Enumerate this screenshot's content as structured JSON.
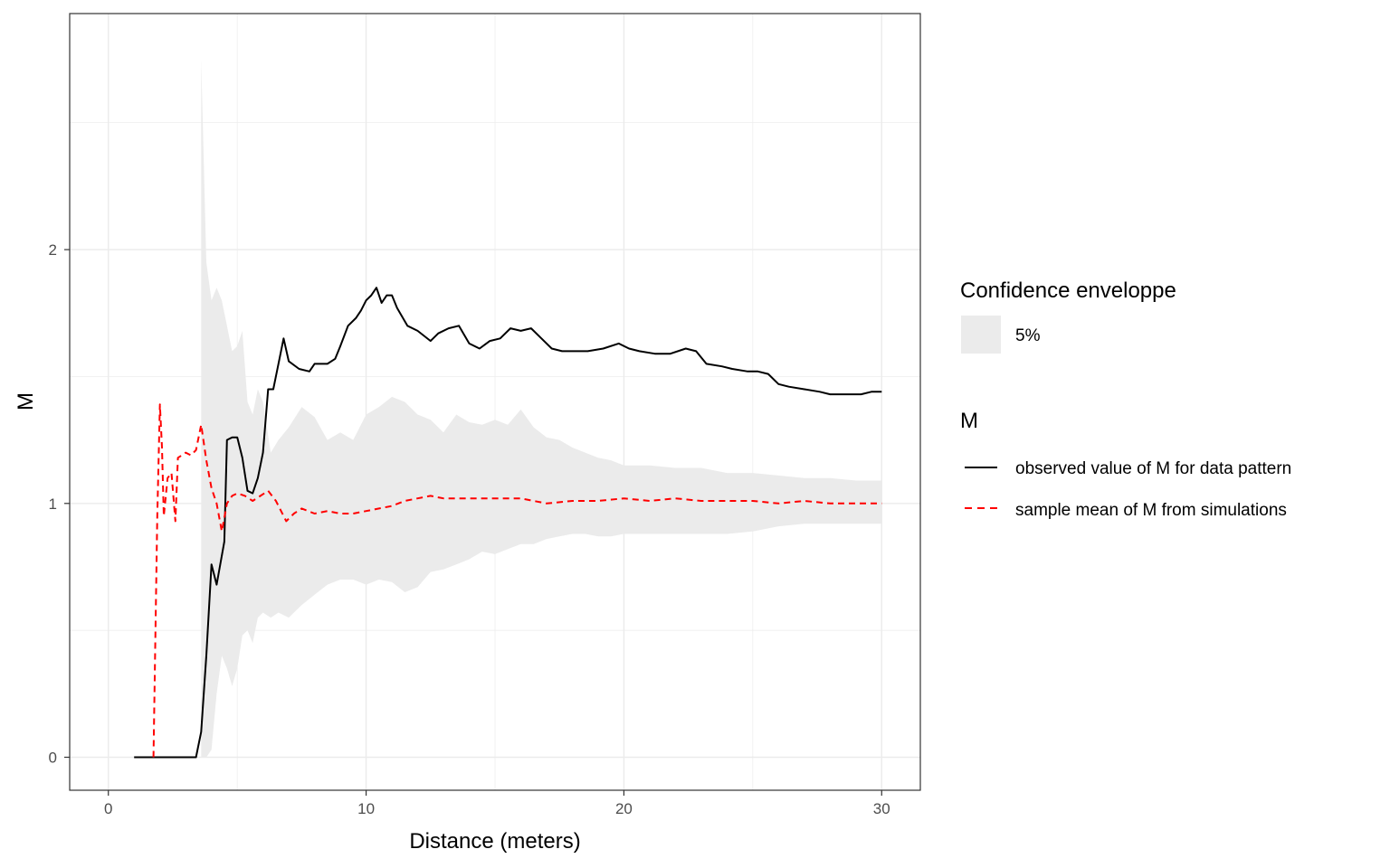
{
  "chart_data": {
    "type": "line",
    "title": "",
    "xlabel": "Distance (meters)",
    "ylabel": "M",
    "xlim": [
      -1.5,
      31.5
    ],
    "ylim": [
      -0.13,
      2.93
    ],
    "x_ticks": [
      0,
      10,
      20,
      30
    ],
    "y_ticks": [
      0,
      1,
      2
    ],
    "x_tick_labels": [
      "0",
      "10",
      "20",
      "30"
    ],
    "y_tick_labels": [
      "0",
      "1",
      "2"
    ],
    "grid": true,
    "legend_position": "right",
    "colors": {
      "observed": "#000000",
      "mean": "#ff0000",
      "envelope": "#ebebeb"
    },
    "legends": [
      {
        "title": "Confidence enveloppe",
        "entries": [
          {
            "label": "5%",
            "kind": "fill"
          }
        ]
      },
      {
        "title": "M",
        "entries": [
          {
            "label": "observed value of M for data pattern",
            "kind": "solid"
          },
          {
            "label": "sample mean of M from simulations",
            "kind": "dashed"
          }
        ]
      }
    ],
    "series": [
      {
        "name": "observed value of M for data pattern",
        "x": [
          1,
          2,
          3,
          3.4,
          3.6,
          3.8,
          4.0,
          4.2,
          4.5,
          4.6,
          4.8,
          5.0,
          5.2,
          5.4,
          5.6,
          5.8,
          6.0,
          6.2,
          6.4,
          6.6,
          6.8,
          7.0,
          7.4,
          7.8,
          8.0,
          8.5,
          8.8,
          9.0,
          9.3,
          9.6,
          9.8,
          10.0,
          10.2,
          10.4,
          10.6,
          10.8,
          11.0,
          11.2,
          11.6,
          12.0,
          12.5,
          12.8,
          13.2,
          13.6,
          14.0,
          14.4,
          14.8,
          15.2,
          15.6,
          16.0,
          16.4,
          16.8,
          17.2,
          17.6,
          18.0,
          18.6,
          19.2,
          19.8,
          20.2,
          20.6,
          21.2,
          21.8,
          22.4,
          22.8,
          23.2,
          23.8,
          24.2,
          24.8,
          25.2,
          25.6,
          26.0,
          26.4,
          27.0,
          27.6,
          28.0,
          28.6,
          29.2,
          29.6,
          30.0
        ],
        "values": [
          0,
          0,
          0,
          0,
          0.1,
          0.4,
          0.76,
          0.68,
          0.85,
          1.25,
          1.26,
          1.26,
          1.18,
          1.05,
          1.04,
          1.1,
          1.2,
          1.45,
          1.45,
          1.55,
          1.65,
          1.56,
          1.53,
          1.52,
          1.55,
          1.55,
          1.57,
          1.62,
          1.7,
          1.73,
          1.76,
          1.8,
          1.82,
          1.85,
          1.79,
          1.82,
          1.82,
          1.77,
          1.7,
          1.68,
          1.64,
          1.67,
          1.69,
          1.7,
          1.63,
          1.61,
          1.64,
          1.65,
          1.69,
          1.68,
          1.69,
          1.65,
          1.61,
          1.6,
          1.6,
          1.6,
          1.61,
          1.63,
          1.61,
          1.6,
          1.59,
          1.59,
          1.61,
          1.6,
          1.55,
          1.54,
          1.53,
          1.52,
          1.52,
          1.51,
          1.47,
          1.46,
          1.45,
          1.44,
          1.43,
          1.43,
          1.43,
          1.44,
          1.44
        ]
      },
      {
        "name": "sample mean of M from simulations",
        "x": [
          1.75,
          1.9,
          2.0,
          2.08,
          2.15,
          2.3,
          2.45,
          2.6,
          2.7,
          2.85,
          3.0,
          3.2,
          3.4,
          3.6,
          3.8,
          4.0,
          4.2,
          4.4,
          4.6,
          4.8,
          5.0,
          5.3,
          5.6,
          5.9,
          6.2,
          6.5,
          6.9,
          7.2,
          7.5,
          8.0,
          8.5,
          9.0,
          9.5,
          10.0,
          10.5,
          11.0,
          11.5,
          12.0,
          12.5,
          13.0,
          14.0,
          15.0,
          16.0,
          17.0,
          18.0,
          19.0,
          20.0,
          21.0,
          22.0,
          23.0,
          24.0,
          25.0,
          26.0,
          27.0,
          28.0,
          29.0,
          30.0
        ],
        "values": [
          0,
          0.95,
          1.39,
          1.22,
          0.95,
          1.1,
          1.12,
          0.93,
          1.18,
          1.19,
          1.2,
          1.19,
          1.21,
          1.31,
          1.17,
          1.06,
          1.0,
          0.89,
          1.0,
          1.03,
          1.04,
          1.03,
          1.01,
          1.03,
          1.05,
          1.01,
          0.93,
          0.96,
          0.98,
          0.96,
          0.97,
          0.96,
          0.96,
          0.97,
          0.98,
          0.99,
          1.01,
          1.02,
          1.03,
          1.02,
          1.02,
          1.02,
          1.02,
          1.0,
          1.01,
          1.01,
          1.02,
          1.01,
          1.02,
          1.01,
          1.01,
          1.01,
          1.0,
          1.01,
          1.0,
          1.0,
          1.0
        ]
      }
    ],
    "envelope": {
      "name": "5%",
      "x": [
        3.6,
        3.8,
        4.0,
        4.2,
        4.4,
        4.6,
        4.8,
        5.0,
        5.2,
        5.4,
        5.6,
        5.8,
        6.0,
        6.3,
        6.6,
        7.0,
        7.5,
        8.0,
        8.5,
        9.0,
        9.5,
        10.0,
        10.5,
        11.0,
        11.5,
        12.0,
        12.5,
        13.0,
        13.5,
        14.0,
        14.5,
        15.0,
        15.5,
        16.0,
        16.5,
        17.0,
        17.5,
        18.0,
        18.5,
        19.0,
        19.5,
        20.0,
        21.0,
        22.0,
        23.0,
        24.0,
        25.0,
        26.0,
        27.0,
        28.0,
        29.0,
        30.0
      ],
      "upper": [
        2.75,
        1.95,
        1.8,
        1.85,
        1.8,
        1.7,
        1.6,
        1.62,
        1.68,
        1.4,
        1.35,
        1.45,
        1.4,
        1.2,
        1.25,
        1.3,
        1.38,
        1.34,
        1.25,
        1.28,
        1.25,
        1.35,
        1.38,
        1.42,
        1.4,
        1.35,
        1.33,
        1.28,
        1.35,
        1.32,
        1.31,
        1.33,
        1.31,
        1.37,
        1.3,
        1.26,
        1.25,
        1.22,
        1.2,
        1.18,
        1.17,
        1.15,
        1.15,
        1.14,
        1.14,
        1.12,
        1.12,
        1.11,
        1.1,
        1.1,
        1.09,
        1.09
      ],
      "lower": [
        0.0,
        0.0,
        0.03,
        0.25,
        0.4,
        0.35,
        0.28,
        0.35,
        0.48,
        0.5,
        0.45,
        0.55,
        0.57,
        0.55,
        0.57,
        0.55,
        0.6,
        0.64,
        0.68,
        0.7,
        0.7,
        0.68,
        0.7,
        0.69,
        0.65,
        0.67,
        0.73,
        0.74,
        0.76,
        0.78,
        0.81,
        0.8,
        0.82,
        0.84,
        0.84,
        0.86,
        0.87,
        0.88,
        0.88,
        0.87,
        0.87,
        0.88,
        0.88,
        0.88,
        0.88,
        0.88,
        0.89,
        0.91,
        0.92,
        0.92,
        0.92,
        0.92
      ]
    }
  }
}
